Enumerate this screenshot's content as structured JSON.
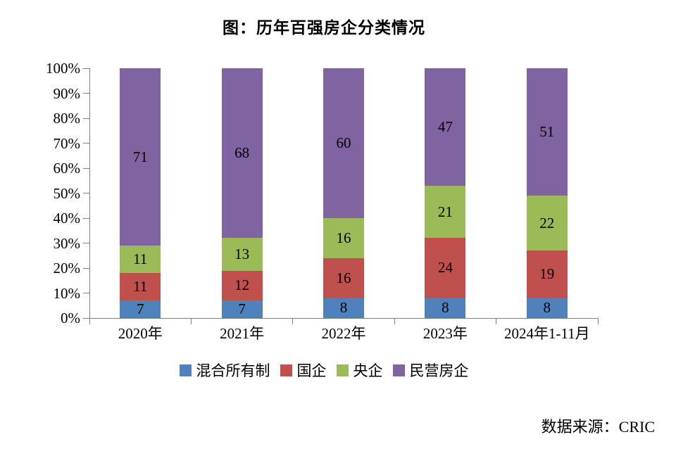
{
  "title": "图：历年百强房企分类情况",
  "source": "数据来源：CRIC",
  "chart_data": {
    "type": "bar",
    "subtype": "stacked-percent",
    "title": "图：历年百强房企分类情况",
    "categories": [
      "2020年",
      "2021年",
      "2022年",
      "2023年",
      "2024年1-11月"
    ],
    "series": [
      {
        "name": "混合所有制",
        "color": "#4F81BD",
        "values": [
          7,
          7,
          8,
          8,
          8
        ]
      },
      {
        "name": "国企",
        "color": "#C0504D",
        "values": [
          11,
          12,
          16,
          24,
          19
        ]
      },
      {
        "name": "央企",
        "color": "#9BBB59",
        "values": [
          11,
          13,
          16,
          21,
          22
        ]
      },
      {
        "name": "民营房企",
        "color": "#8064A2",
        "values": [
          71,
          68,
          60,
          47,
          51
        ]
      }
    ],
    "y_axis": {
      "min": 0,
      "max": 100,
      "step": 10,
      "tick_suffix": "%"
    },
    "xlabel": "",
    "ylabel": "",
    "grid": false,
    "legend_position": "bottom",
    "axis_color": "#7f7f7f",
    "label_color": "#000000"
  }
}
